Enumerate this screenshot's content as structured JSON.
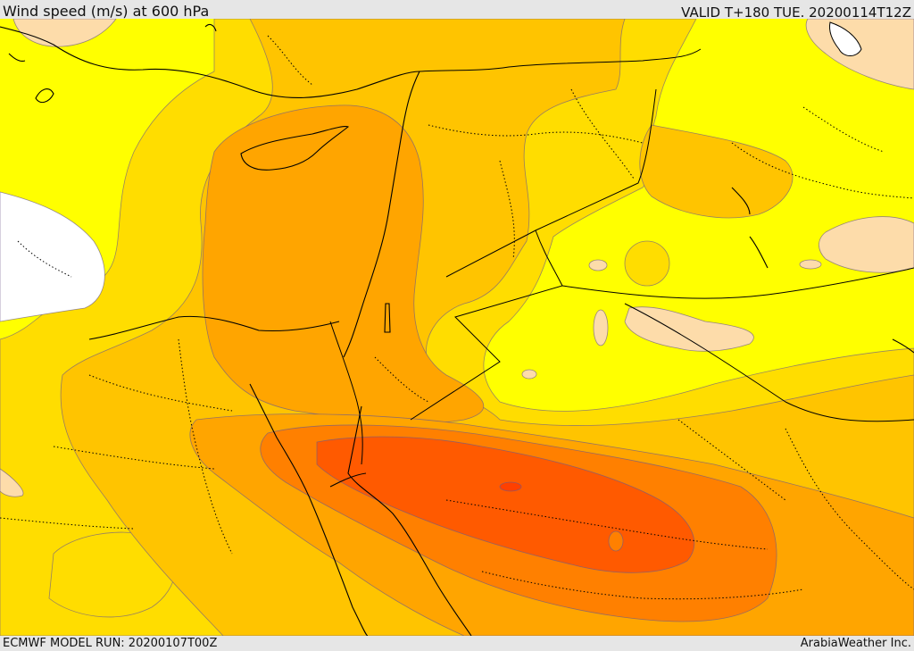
{
  "header": {
    "title": "Wind speed (m/s) at 600 hPa",
    "valid_time": "VALID T+180 TUE. 20200114T12Z"
  },
  "footer": {
    "model_run": "ECMWF MODEL RUN: 20200107T00Z",
    "credit": "ArabiaWeather Inc."
  },
  "colors": {
    "white_band": "#ffffff",
    "light_band": "#fddcaa",
    "yellow_band": "#ffff00",
    "gold_band": "#ffdd00",
    "amber_band": "#ffc400",
    "orange_band": "#ffa500",
    "dark_orange_band": "#ff8000",
    "red_orange_band": "#ff5a00",
    "contour_line": "#6b5a8a",
    "coastline": "#000000"
  }
}
